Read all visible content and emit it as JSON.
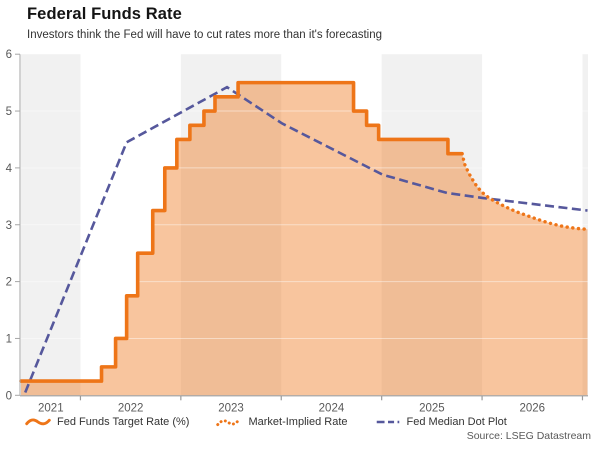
{
  "header": {
    "title": "Federal Funds Rate",
    "subtitle": "Investors think the Fed will have to cut rates more than it's forecasting"
  },
  "source_label": "Source: LSEG Datastream",
  "chart_data": {
    "type": "line",
    "title": "Federal Funds Rate",
    "subtitle": "Investors think the Fed will have to cut rates more than it's forecasting",
    "xlabel": "",
    "ylabel": "",
    "x_domain": [
      2021.408,
      2027.055
    ],
    "ylim": [
      0,
      6
    ],
    "y_ticks": [
      0,
      1,
      2,
      3,
      4,
      5,
      6
    ],
    "x_tick_marks": [
      2022,
      2023,
      2024,
      2025,
      2026,
      2027
    ],
    "x_tick_labels": [
      {
        "label": "2021",
        "t": 2021.705
      },
      {
        "label": "2022",
        "t": 2022.5
      },
      {
        "label": "2023",
        "t": 2023.5
      },
      {
        "label": "2024",
        "t": 2024.5
      },
      {
        "label": "2025",
        "t": 2025.5
      },
      {
        "label": "2026",
        "t": 2026.5
      }
    ],
    "grid": "faint white horizontal lines at integer values",
    "bands": {
      "color": "#f1f1f1",
      "ranges": [
        [
          2021.408,
          2022
        ],
        [
          2023,
          2024
        ],
        [
          2025,
          2026
        ],
        [
          2027,
          2027.055
        ]
      ]
    },
    "area_fill_color": "rgba(238,117,24,0.42)",
    "colors": {
      "orange": "#ee7518",
      "purple": "#56589c",
      "axis": "#a6a6a6",
      "tick_text": "#595959"
    },
    "series": [
      {
        "name": "Fed Funds Target Rate (%)",
        "style": "step-solid",
        "color": "#ee7518",
        "end_t": 2025.8,
        "points": [
          [
            2021.408,
            0.25
          ],
          [
            2022.21,
            0.5
          ],
          [
            2022.35,
            1.0
          ],
          [
            2022.46,
            1.75
          ],
          [
            2022.57,
            2.5
          ],
          [
            2022.72,
            3.25
          ],
          [
            2022.84,
            4.0
          ],
          [
            2022.96,
            4.5
          ],
          [
            2023.09,
            4.75
          ],
          [
            2023.23,
            5.0
          ],
          [
            2023.34,
            5.25
          ],
          [
            2023.57,
            5.5
          ],
          [
            2024.72,
            5.0
          ],
          [
            2024.85,
            4.75
          ],
          [
            2024.97,
            4.5
          ],
          [
            2025.66,
            4.25
          ]
        ]
      },
      {
        "name": "Market-Implied Rate",
        "style": "dotted",
        "color": "#ee7518",
        "points": [
          [
            2025.8,
            4.25
          ],
          [
            2025.83,
            4.05
          ],
          [
            2025.87,
            3.9
          ],
          [
            2025.91,
            3.78
          ],
          [
            2025.95,
            3.67
          ],
          [
            2026.0,
            3.57
          ],
          [
            2026.07,
            3.47
          ],
          [
            2026.15,
            3.39
          ],
          [
            2026.24,
            3.31
          ],
          [
            2026.34,
            3.23
          ],
          [
            2026.45,
            3.16
          ],
          [
            2026.56,
            3.09
          ],
          [
            2026.67,
            3.03
          ],
          [
            2026.78,
            2.98
          ],
          [
            2026.88,
            2.95
          ],
          [
            2026.97,
            2.93
          ],
          [
            2027.05,
            2.92
          ]
        ]
      },
      {
        "name": "Fed Median Dot Plot",
        "style": "dashed",
        "color": "#56589c",
        "points": [
          [
            2021.45,
            0.05
          ],
          [
            2022.46,
            4.45
          ],
          [
            2023.46,
            5.42
          ],
          [
            2024.01,
            4.78
          ],
          [
            2025.01,
            3.88
          ],
          [
            2025.65,
            3.56
          ],
          [
            2026.01,
            3.47
          ],
          [
            2027.05,
            3.25
          ]
        ]
      }
    ],
    "legend": {
      "position": "bottom",
      "items": [
        {
          "label": "Fed Funds Target Rate (%)",
          "icon": "solid-squiggle-icon",
          "color": "#ee7518"
        },
        {
          "label": "Market-Implied Rate",
          "icon": "dotted-squiggle-icon",
          "color": "#ee7518"
        },
        {
          "label": "Fed Median Dot Plot",
          "icon": "dashed-line-icon",
          "color": "#56589c"
        }
      ]
    },
    "annotations": [],
    "source": "Source: LSEG Datastream"
  }
}
